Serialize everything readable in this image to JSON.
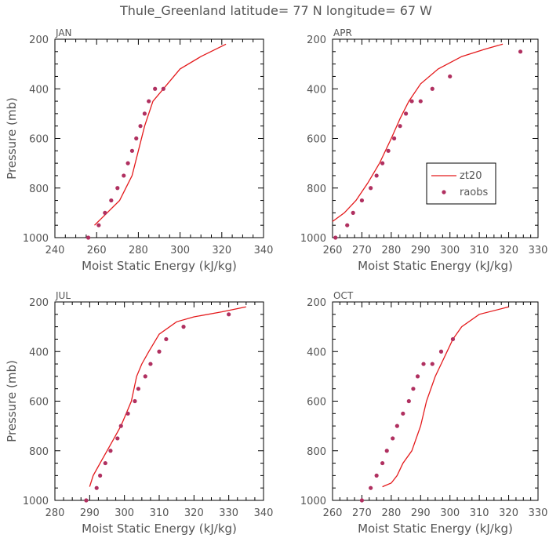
{
  "title": "Thule_Greenland  latitude= 77 N longitude= 67 W",
  "colors": {
    "model": "#e41a1c",
    "obs": "#b03060",
    "text": "#555555",
    "axis": "#000000"
  },
  "chart_data": [
    {
      "type": "line",
      "panel_label": "JAN",
      "xlabel": "Moist Static Energy (kJ/kg)",
      "ylabel": "Pressure (mb)",
      "xlim": [
        240,
        340
      ],
      "ylim": [
        1000,
        200
      ],
      "x_ticks": [
        240,
        260,
        280,
        300,
        320,
        340
      ],
      "y_ticks": [
        200,
        400,
        600,
        800,
        1000
      ],
      "show_legend": false,
      "series": [
        {
          "name": "zt20",
          "kind": "line",
          "x": [
            259,
            262,
            265,
            268,
            271,
            274,
            277,
            280,
            283,
            287,
            292,
            300,
            310,
            322
          ],
          "y": [
            950,
            925,
            900,
            875,
            850,
            800,
            750,
            650,
            550,
            450,
            400,
            320,
            270,
            220
          ]
        },
        {
          "name": "raobs",
          "kind": "points",
          "x": [
            256,
            261,
            264,
            267,
            270,
            273,
            275,
            277,
            279,
            281,
            283,
            285,
            288,
            292
          ],
          "y": [
            1000,
            950,
            900,
            850,
            800,
            750,
            700,
            650,
            600,
            550,
            500,
            450,
            400,
            400
          ]
        }
      ]
    },
    {
      "type": "line",
      "panel_label": "APR",
      "xlabel": "Moist Static Energy (kJ/kg)",
      "ylabel": "",
      "xlim": [
        260,
        330
      ],
      "ylim": [
        1000,
        200
      ],
      "x_ticks": [
        260,
        270,
        280,
        290,
        300,
        310,
        320,
        330
      ],
      "y_ticks": [
        200,
        400,
        600,
        800,
        1000
      ],
      "show_legend": true,
      "legend": [
        "zt20",
        "raobs"
      ],
      "series": [
        {
          "name": "zt20",
          "kind": "line",
          "x": [
            260,
            264,
            268,
            272,
            276,
            280,
            283,
            286,
            290,
            296,
            304,
            312,
            318
          ],
          "y": [
            935,
            900,
            850,
            780,
            700,
            600,
            520,
            450,
            380,
            320,
            270,
            240,
            220
          ]
        },
        {
          "name": "raobs",
          "kind": "points",
          "x": [
            261,
            265,
            267,
            270,
            273,
            275,
            277,
            279,
            281,
            283,
            285,
            287,
            290,
            294,
            300,
            324
          ],
          "y": [
            1000,
            950,
            900,
            850,
            800,
            750,
            700,
            650,
            600,
            550,
            500,
            450,
            450,
            400,
            350,
            250
          ]
        }
      ]
    },
    {
      "type": "line",
      "panel_label": "JUL",
      "xlabel": "Moist Static Energy (kJ/kg)",
      "ylabel": "Pressure (mb)",
      "xlim": [
        280,
        340
      ],
      "ylim": [
        1000,
        200
      ],
      "x_ticks": [
        280,
        290,
        300,
        310,
        320,
        330,
        340
      ],
      "y_ticks": [
        200,
        400,
        600,
        800,
        1000
      ],
      "show_legend": false,
      "series": [
        {
          "name": "zt20",
          "kind": "line",
          "x": [
            290,
            291,
            293,
            295,
            297,
            299,
            300.5,
            302,
            303.5,
            305,
            307,
            310,
            315,
            320,
            328,
            335
          ],
          "y": [
            945,
            900,
            850,
            800,
            750,
            700,
            650,
            600,
            500,
            450,
            400,
            330,
            280,
            260,
            240,
            220
          ]
        },
        {
          "name": "raobs",
          "kind": "points",
          "x": [
            289,
            292,
            293,
            294.5,
            296,
            298,
            299,
            301,
            303,
            304,
            306,
            307.5,
            310,
            312,
            317,
            330
          ],
          "y": [
            1000,
            950,
            900,
            850,
            800,
            750,
            700,
            650,
            600,
            550,
            500,
            450,
            400,
            350,
            300,
            250
          ]
        }
      ]
    },
    {
      "type": "line",
      "panel_label": "OCT",
      "xlabel": "Moist Static Energy (kJ/kg)",
      "ylabel": "",
      "xlim": [
        260,
        330
      ],
      "ylim": [
        1000,
        200
      ],
      "x_ticks": [
        260,
        270,
        280,
        290,
        300,
        310,
        320,
        330
      ],
      "y_ticks": [
        200,
        400,
        600,
        800,
        1000
      ],
      "show_legend": false,
      "series": [
        {
          "name": "zt20",
          "kind": "line",
          "x": [
            277,
            280,
            282,
            284,
            287,
            290,
            292,
            295,
            297,
            299,
            301,
            304,
            310,
            320
          ],
          "y": [
            945,
            930,
            900,
            850,
            800,
            700,
            600,
            500,
            450,
            400,
            350,
            300,
            250,
            220
          ]
        },
        {
          "name": "raobs",
          "kind": "points",
          "x": [
            270,
            273,
            275,
            277,
            278.5,
            280.5,
            282,
            284,
            286,
            287.5,
            289,
            291,
            294,
            297,
            301
          ],
          "y": [
            1000,
            950,
            900,
            850,
            800,
            750,
            700,
            650,
            600,
            550,
            500,
            450,
            450,
            400,
            350
          ]
        }
      ]
    }
  ]
}
